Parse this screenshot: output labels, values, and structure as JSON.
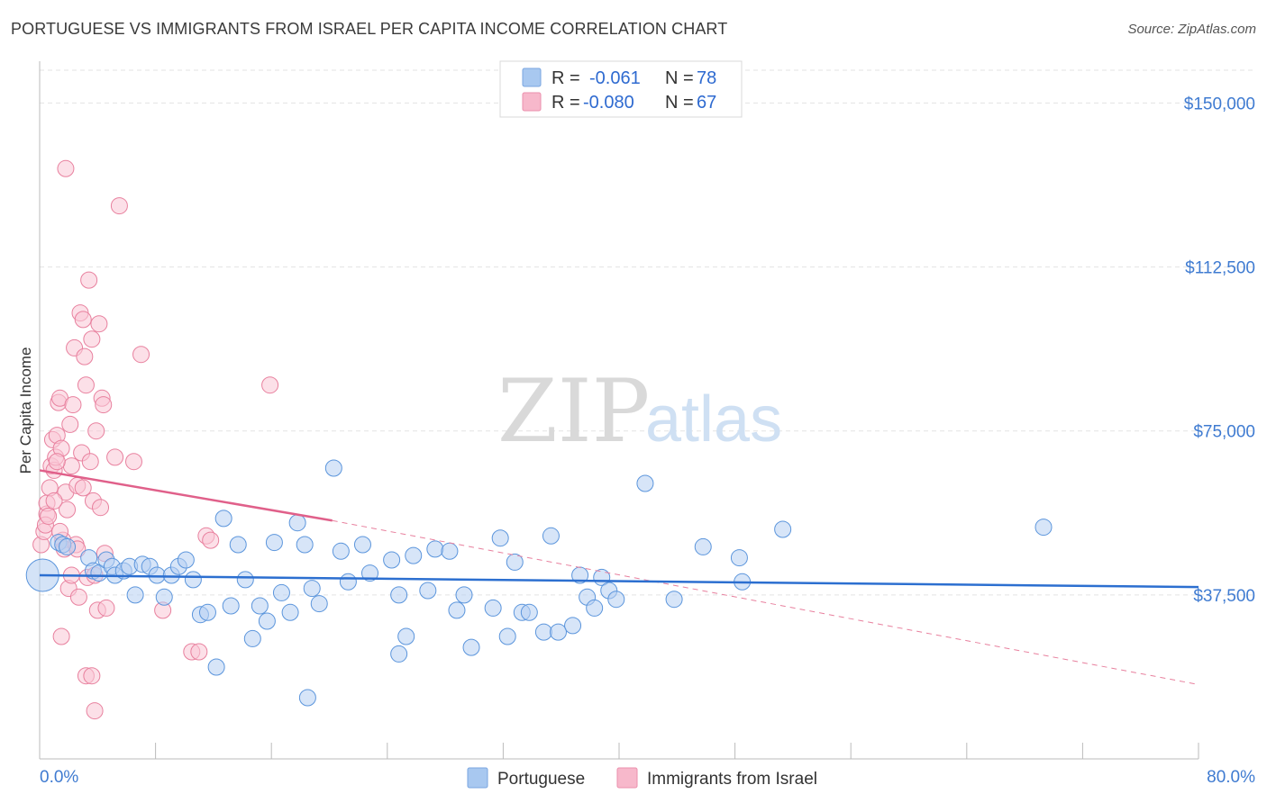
{
  "title": "PORTUGUESE VS IMMIGRANTS FROM ISRAEL PER CAPITA INCOME CORRELATION CHART",
  "source": "Source: ZipAtlas.com",
  "watermark": {
    "zip": "ZIP",
    "atlas": "atlas"
  },
  "legend": {
    "r_label": "R =",
    "n_label": "N =",
    "rows": [
      {
        "r": "-0.061",
        "n": "78",
        "color": "#a8c8f0"
      },
      {
        "r": "-0.080",
        "n": "67",
        "color": "#f7b8cb"
      }
    ]
  },
  "chart_data": {
    "type": "scatter",
    "title": "PORTUGUESE VS IMMIGRANTS FROM ISRAEL PER CAPITA INCOME CORRELATION CHART",
    "xlabel": "",
    "ylabel": "Per Capita Income",
    "xlim": [
      0,
      80
    ],
    "ylim": [
      0,
      157500
    ],
    "x_tick_labels": [
      "0.0%",
      "80.0%"
    ],
    "y_ticks": [
      37500,
      75000,
      112500,
      150000
    ],
    "y_tick_labels": [
      "$37,500",
      "$75,000",
      "$112,500",
      "$150,000"
    ],
    "grid": true,
    "series": [
      {
        "name": "Portuguese",
        "color": "#5b95dc",
        "fill": "#b7d0f2",
        "trend": {
          "x": [
            0,
            80
          ],
          "y": [
            42000,
            39300
          ],
          "color": "#2c6fd0"
        },
        "points": [
          [
            0.2,
            42000
          ],
          [
            1.3,
            49500
          ],
          [
            1.6,
            49000
          ],
          [
            1.9,
            48500
          ],
          [
            3.4,
            46000
          ],
          [
            3.7,
            43000
          ],
          [
            4.1,
            42500
          ],
          [
            4.6,
            45500
          ],
          [
            5.0,
            44000
          ],
          [
            5.2,
            42000
          ],
          [
            5.8,
            43000
          ],
          [
            6.2,
            44000
          ],
          [
            6.6,
            37500
          ],
          [
            7.1,
            44500
          ],
          [
            7.6,
            44000
          ],
          [
            8.1,
            42000
          ],
          [
            8.6,
            37000
          ],
          [
            9.1,
            42000
          ],
          [
            9.6,
            44000
          ],
          [
            10.1,
            45500
          ],
          [
            10.6,
            41000
          ],
          [
            11.1,
            33000
          ],
          [
            11.6,
            33500
          ],
          [
            12.7,
            55000
          ],
          [
            13.2,
            35000
          ],
          [
            13.7,
            49000
          ],
          [
            14.2,
            41000
          ],
          [
            14.7,
            27500
          ],
          [
            15.2,
            35000
          ],
          [
            15.7,
            31500
          ],
          [
            16.2,
            49500
          ],
          [
            16.7,
            38000
          ],
          [
            17.3,
            33500
          ],
          [
            17.8,
            54000
          ],
          [
            18.3,
            49000
          ],
          [
            18.8,
            39000
          ],
          [
            19.3,
            35500
          ],
          [
            20.3,
            66500
          ],
          [
            20.8,
            47500
          ],
          [
            21.3,
            40500
          ],
          [
            22.3,
            49000
          ],
          [
            22.8,
            42500
          ],
          [
            24.3,
            45500
          ],
          [
            24.8,
            37500
          ],
          [
            25.3,
            28000
          ],
          [
            25.8,
            46500
          ],
          [
            26.8,
            38500
          ],
          [
            27.3,
            48000
          ],
          [
            28.3,
            47500
          ],
          [
            28.8,
            34000
          ],
          [
            29.3,
            37500
          ],
          [
            29.8,
            25500
          ],
          [
            31.3,
            34500
          ],
          [
            31.8,
            50500
          ],
          [
            32.3,
            28000
          ],
          [
            32.8,
            45000
          ],
          [
            33.3,
            33500
          ],
          [
            33.8,
            33500
          ],
          [
            34.8,
            29000
          ],
          [
            35.3,
            51000
          ],
          [
            35.8,
            29000
          ],
          [
            36.8,
            30500
          ],
          [
            37.3,
            42000
          ],
          [
            37.8,
            37000
          ],
          [
            38.3,
            34500
          ],
          [
            38.8,
            41500
          ],
          [
            39.3,
            38500
          ],
          [
            39.8,
            36500
          ],
          [
            41.8,
            63000
          ],
          [
            43.8,
            36500
          ],
          [
            45.8,
            48500
          ],
          [
            48.3,
            46000
          ],
          [
            48.5,
            40500
          ],
          [
            51.3,
            52500
          ],
          [
            69.3,
            53000
          ],
          [
            24.8,
            24000
          ],
          [
            18.5,
            14000
          ],
          [
            12.2,
            21000
          ]
        ]
      },
      {
        "name": "Immigrants from Israel",
        "color": "#e8809e",
        "fill": "#f9c6d5",
        "trend": {
          "x": [
            0,
            20.2
          ],
          "y": [
            66000,
            54500
          ],
          "color": "#e0608a"
        },
        "trend_dashed": {
          "x": [
            20.2,
            80
          ],
          "y": [
            54500,
            17000
          ],
          "color": "#e8809e"
        },
        "points": [
          [
            0.1,
            49000
          ],
          [
            0.3,
            52000
          ],
          [
            0.5,
            56000
          ],
          [
            0.5,
            58500
          ],
          [
            0.7,
            62000
          ],
          [
            0.8,
            67000
          ],
          [
            0.9,
            73000
          ],
          [
            1.0,
            66000
          ],
          [
            1.1,
            69000
          ],
          [
            1.2,
            74000
          ],
          [
            1.3,
            81500
          ],
          [
            1.4,
            82500
          ],
          [
            1.5,
            71000
          ],
          [
            1.6,
            50000
          ],
          [
            1.7,
            48000
          ],
          [
            1.8,
            61000
          ],
          [
            1.9,
            57000
          ],
          [
            2.0,
            39000
          ],
          [
            2.1,
            76500
          ],
          [
            2.2,
            67000
          ],
          [
            2.3,
            81000
          ],
          [
            2.4,
            94000
          ],
          [
            2.5,
            49000
          ],
          [
            2.6,
            62500
          ],
          [
            2.7,
            37000
          ],
          [
            2.8,
            102000
          ],
          [
            2.9,
            70000
          ],
          [
            3.0,
            100500
          ],
          [
            3.1,
            92000
          ],
          [
            3.2,
            85500
          ],
          [
            3.3,
            41500
          ],
          [
            3.4,
            109500
          ],
          [
            3.5,
            68000
          ],
          [
            3.6,
            96000
          ],
          [
            3.7,
            59000
          ],
          [
            3.8,
            42000
          ],
          [
            3.9,
            75000
          ],
          [
            4.0,
            34000
          ],
          [
            4.1,
            99500
          ],
          [
            4.2,
            57500
          ],
          [
            4.3,
            82500
          ],
          [
            4.4,
            81000
          ],
          [
            4.5,
            47000
          ],
          [
            4.6,
            34500
          ],
          [
            5.2,
            69000
          ],
          [
            5.5,
            126500
          ],
          [
            6.5,
            68000
          ],
          [
            7.0,
            92500
          ],
          [
            8.5,
            34000
          ],
          [
            10.5,
            24500
          ],
          [
            11.0,
            24500
          ],
          [
            11.5,
            51000
          ],
          [
            11.8,
            50000
          ],
          [
            15.9,
            85500
          ],
          [
            1.5,
            28000
          ],
          [
            3.2,
            19000
          ],
          [
            3.6,
            19000
          ],
          [
            3.8,
            11000
          ],
          [
            1.8,
            135000
          ],
          [
            0.4,
            53500
          ],
          [
            0.6,
            55500
          ],
          [
            1.0,
            59000
          ],
          [
            1.2,
            68000
          ],
          [
            2.6,
            48000
          ],
          [
            2.2,
            42000
          ],
          [
            3.0,
            62000
          ],
          [
            1.4,
            52000
          ]
        ]
      }
    ]
  },
  "bottom_legend": [
    {
      "label": "Portuguese",
      "color": "#a8c8f0"
    },
    {
      "label": "Immigrants from Israel",
      "color": "#f7b8cb"
    }
  ]
}
